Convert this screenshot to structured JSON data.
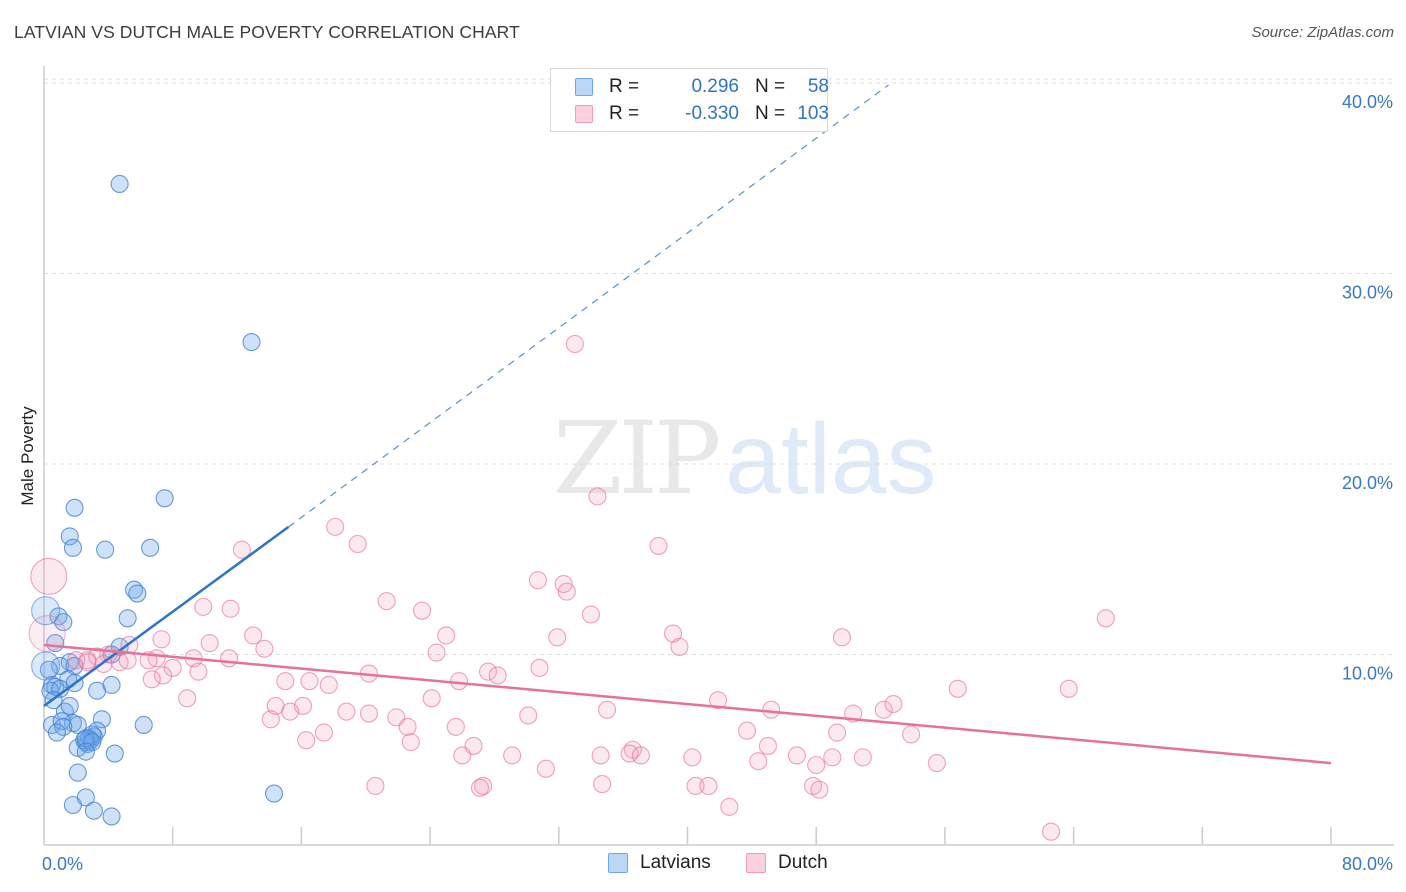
{
  "title": "LATVIAN VS DUTCH MALE POVERTY CORRELATION CHART",
  "source": "Source: ZipAtlas.com",
  "watermark": {
    "part1": "ZIP",
    "part2": "atlas"
  },
  "colors": {
    "latvians": "#6fa8e8",
    "latvians_line": "#2e74c9",
    "dutch": "#f19ab9",
    "dutch_line": "#e8709a",
    "tick_label": "#3a76c6",
    "grid": "#dddddd"
  },
  "legend": {
    "rows": [
      {
        "r_label": "R =",
        "r_value": "0.296",
        "n_label": "N =",
        "n_value": "58"
      },
      {
        "r_label": "R =",
        "r_value": "-0.330",
        "n_label": "N =",
        "n_value": "103"
      }
    ]
  },
  "chart_data": {
    "type": "scatter",
    "title": "LATVIAN VS DUTCH MALE POVERTY CORRELATION CHART",
    "ylabel": "Male Poverty",
    "xlabel": "",
    "xlim": [
      0,
      80
    ],
    "ylim": [
      0,
      40
    ],
    "x_tick_labels": [
      "0.0%",
      "80.0%"
    ],
    "y_tick_labels": [
      "10.0%",
      "20.0%",
      "30.0%",
      "40.0%"
    ],
    "y_ticks": [
      10,
      20,
      30,
      40
    ],
    "grid": "dashed horizontal",
    "legend_position": "top-center",
    "series": [
      {
        "name": "Latvians",
        "r": 0.296,
        "n": 58,
        "trend_solid": [
          [
            0.0,
            7.3
          ],
          [
            15.2,
            16.7
          ]
        ],
        "trend_dashed": [
          [
            15.2,
            16.7
          ],
          [
            52.5,
            39.9
          ]
        ],
        "points": [
          [
            4.7,
            34.7
          ],
          [
            12.9,
            26.4
          ],
          [
            1.9,
            17.7
          ],
          [
            7.5,
            18.2
          ],
          [
            1.6,
            16.2
          ],
          [
            1.8,
            15.6
          ],
          [
            3.8,
            15.5
          ],
          [
            6.6,
            15.6
          ],
          [
            5.6,
            13.4
          ],
          [
            5.8,
            13.2
          ],
          [
            0.9,
            12.0
          ],
          [
            1.2,
            11.7
          ],
          [
            5.2,
            11.9
          ],
          [
            0.7,
            10.6
          ],
          [
            4.7,
            10.4
          ],
          [
            4.2,
            10.0
          ],
          [
            1.6,
            9.6
          ],
          [
            1.0,
            9.4
          ],
          [
            1.9,
            9.4
          ],
          [
            0.3,
            9.2
          ],
          [
            1.5,
            8.7
          ],
          [
            1.9,
            8.5
          ],
          [
            0.5,
            8.4
          ],
          [
            0.7,
            8.3
          ],
          [
            0.4,
            8.1
          ],
          [
            1.0,
            8.2
          ],
          [
            3.3,
            8.1
          ],
          [
            4.2,
            8.4
          ],
          [
            0.6,
            7.6
          ],
          [
            1.3,
            7.0
          ],
          [
            1.6,
            7.3
          ],
          [
            3.6,
            6.6
          ],
          [
            1.8,
            6.4
          ],
          [
            0.5,
            6.3
          ],
          [
            1.1,
            6.5
          ],
          [
            2.1,
            6.3
          ],
          [
            6.2,
            6.3
          ],
          [
            1.2,
            6.2
          ],
          [
            0.8,
            5.9
          ],
          [
            3.3,
            6.0
          ],
          [
            3.1,
            5.7
          ],
          [
            2.7,
            5.3
          ],
          [
            2.9,
            5.5
          ],
          [
            2.8,
            5.6
          ],
          [
            2.1,
            5.1
          ],
          [
            3.0,
            5.8
          ],
          [
            2.6,
            5.4
          ],
          [
            2.5,
            5.5
          ],
          [
            2.6,
            5.6
          ],
          [
            3.0,
            5.4
          ],
          [
            2.6,
            4.9
          ],
          [
            4.4,
            4.8
          ],
          [
            2.1,
            3.8
          ],
          [
            14.3,
            2.7
          ],
          [
            1.8,
            2.1
          ],
          [
            2.6,
            2.5
          ],
          [
            3.1,
            1.8
          ],
          [
            4.2,
            1.5
          ]
        ]
      },
      {
        "name": "Dutch",
        "r": -0.33,
        "n": 103,
        "trend": [
          [
            0.0,
            10.5
          ],
          [
            80.0,
            4.3
          ]
        ],
        "points": [
          [
            33.0,
            26.3
          ],
          [
            34.4,
            18.3
          ],
          [
            18.1,
            16.7
          ],
          [
            19.5,
            15.8
          ],
          [
            12.3,
            15.5
          ],
          [
            38.2,
            15.7
          ],
          [
            30.7,
            13.9
          ],
          [
            32.3,
            13.7
          ],
          [
            32.5,
            13.3
          ],
          [
            21.3,
            12.8
          ],
          [
            9.9,
            12.5
          ],
          [
            11.6,
            12.4
          ],
          [
            23.5,
            12.3
          ],
          [
            34.0,
            12.1
          ],
          [
            66.0,
            11.9
          ],
          [
            39.1,
            11.1
          ],
          [
            25.0,
            11.0
          ],
          [
            31.9,
            10.9
          ],
          [
            13.0,
            11.0
          ],
          [
            49.6,
            10.9
          ],
          [
            7.3,
            10.8
          ],
          [
            10.3,
            10.6
          ],
          [
            5.3,
            10.5
          ],
          [
            39.5,
            10.4
          ],
          [
            13.7,
            10.3
          ],
          [
            24.4,
            10.1
          ],
          [
            4.0,
            10.0
          ],
          [
            3.3,
            9.9
          ],
          [
            7.0,
            9.8
          ],
          [
            9.3,
            9.8
          ],
          [
            11.5,
            9.8
          ],
          [
            2.7,
            9.7
          ],
          [
            2.0,
            9.7
          ],
          [
            4.7,
            9.6
          ],
          [
            2.7,
            9.6
          ],
          [
            3.7,
            9.5
          ],
          [
            5.2,
            9.7
          ],
          [
            6.5,
            9.7
          ],
          [
            8.0,
            9.3
          ],
          [
            30.8,
            9.3
          ],
          [
            27.6,
            9.1
          ],
          [
            20.2,
            9.0
          ],
          [
            28.2,
            8.9
          ],
          [
            9.6,
            9.1
          ],
          [
            7.4,
            8.9
          ],
          [
            6.7,
            8.7
          ],
          [
            15.0,
            8.6
          ],
          [
            16.5,
            8.6
          ],
          [
            17.7,
            8.4
          ],
          [
            25.8,
            8.6
          ],
          [
            56.8,
            8.2
          ],
          [
            63.7,
            8.2
          ],
          [
            8.9,
            7.7
          ],
          [
            24.1,
            7.7
          ],
          [
            41.9,
            7.6
          ],
          [
            14.4,
            7.3
          ],
          [
            16.1,
            7.3
          ],
          [
            35.0,
            7.1
          ],
          [
            45.2,
            7.1
          ],
          [
            52.2,
            7.1
          ],
          [
            52.8,
            7.4
          ],
          [
            50.3,
            6.9
          ],
          [
            20.2,
            6.9
          ],
          [
            18.8,
            7.0
          ],
          [
            15.3,
            7.0
          ],
          [
            30.1,
            6.8
          ],
          [
            21.9,
            6.7
          ],
          [
            14.1,
            6.6
          ],
          [
            22.6,
            6.2
          ],
          [
            25.6,
            6.2
          ],
          [
            43.7,
            6.0
          ],
          [
            49.3,
            5.9
          ],
          [
            53.9,
            5.8
          ],
          [
            17.4,
            5.9
          ],
          [
            16.3,
            5.5
          ],
          [
            22.8,
            5.4
          ],
          [
            26.7,
            5.2
          ],
          [
            45.0,
            5.2
          ],
          [
            36.6,
            5.0
          ],
          [
            26.0,
            4.7
          ],
          [
            29.1,
            4.7
          ],
          [
            34.6,
            4.7
          ],
          [
            36.4,
            4.8
          ],
          [
            37.1,
            4.7
          ],
          [
            40.3,
            4.6
          ],
          [
            46.8,
            4.7
          ],
          [
            49.0,
            4.6
          ],
          [
            50.9,
            4.6
          ],
          [
            44.4,
            4.4
          ],
          [
            48.0,
            4.2
          ],
          [
            55.5,
            4.3
          ],
          [
            31.2,
            4.0
          ],
          [
            40.5,
            3.1
          ],
          [
            41.3,
            3.1
          ],
          [
            34.7,
            3.2
          ],
          [
            27.3,
            3.1
          ],
          [
            27.1,
            3.0
          ],
          [
            20.6,
            3.1
          ],
          [
            47.8,
            3.1
          ],
          [
            48.2,
            2.9
          ],
          [
            42.6,
            2.0
          ],
          [
            62.6,
            0.7
          ],
          [
            0.3,
            14.1
          ]
        ]
      }
    ]
  }
}
